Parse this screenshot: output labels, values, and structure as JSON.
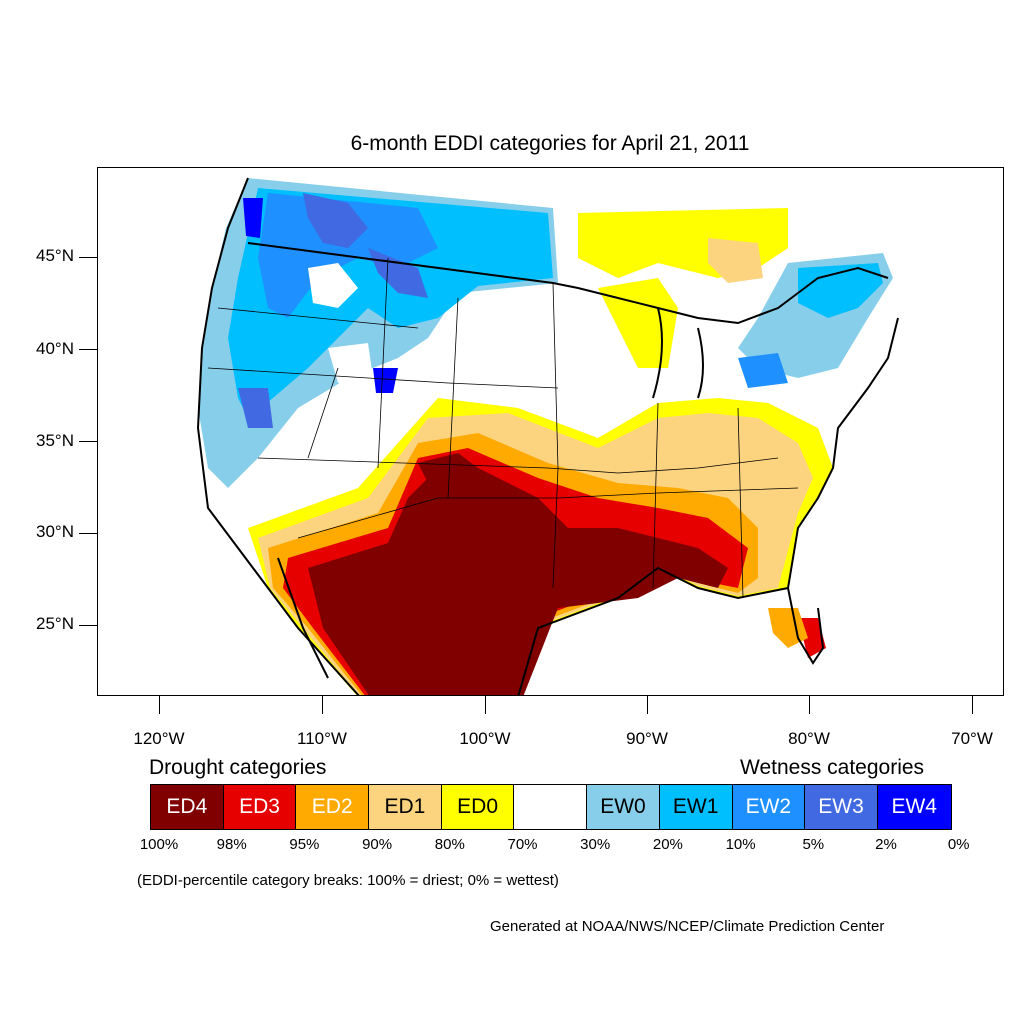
{
  "title": "6-month EDDI categories for April 21, 2011",
  "map": {
    "lat_labels": [
      "45°N",
      "40°N",
      "35°N",
      "30°N",
      "25°N"
    ],
    "lon_labels": [
      "120°W",
      "110°W",
      "100°W",
      "90°W",
      "80°W",
      "70°W"
    ]
  },
  "legend": {
    "drought_heading": "Drought categories",
    "wetness_heading": "Wetness categories",
    "categories": [
      {
        "label": "ED4",
        "color": "#800000",
        "text_color": "#ffffff"
      },
      {
        "label": "ED3",
        "color": "#e60000",
        "text_color": "#ffffff"
      },
      {
        "label": "ED2",
        "color": "#ffaa00",
        "text_color": "#ffffff"
      },
      {
        "label": "ED1",
        "color": "#fcd37f",
        "text_color": "#000000"
      },
      {
        "label": "ED0",
        "color": "#ffff00",
        "text_color": "#000000"
      },
      {
        "label": "",
        "color": "#ffffff",
        "text_color": "#000000"
      },
      {
        "label": "EW0",
        "color": "#87ceeb",
        "text_color": "#000000"
      },
      {
        "label": "EW1",
        "color": "#00bfff",
        "text_color": "#000000"
      },
      {
        "label": "EW2",
        "color": "#1e90ff",
        "text_color": "#ffffff"
      },
      {
        "label": "EW3",
        "color": "#4169e1",
        "text_color": "#ffffff"
      },
      {
        "label": "EW4",
        "color": "#0000ff",
        "text_color": "#ffffff"
      }
    ],
    "breaks": [
      "100%",
      "98%",
      "95%",
      "90%",
      "80%",
      "70%",
      "30%",
      "20%",
      "10%",
      "5%",
      "2%",
      "0%"
    ]
  },
  "note": "(EDDI-percentile category breaks: 100% = driest; 0% = wettest)",
  "credit": "Generated at NOAA/NWS/NCEP/Climate Prediction Center"
}
